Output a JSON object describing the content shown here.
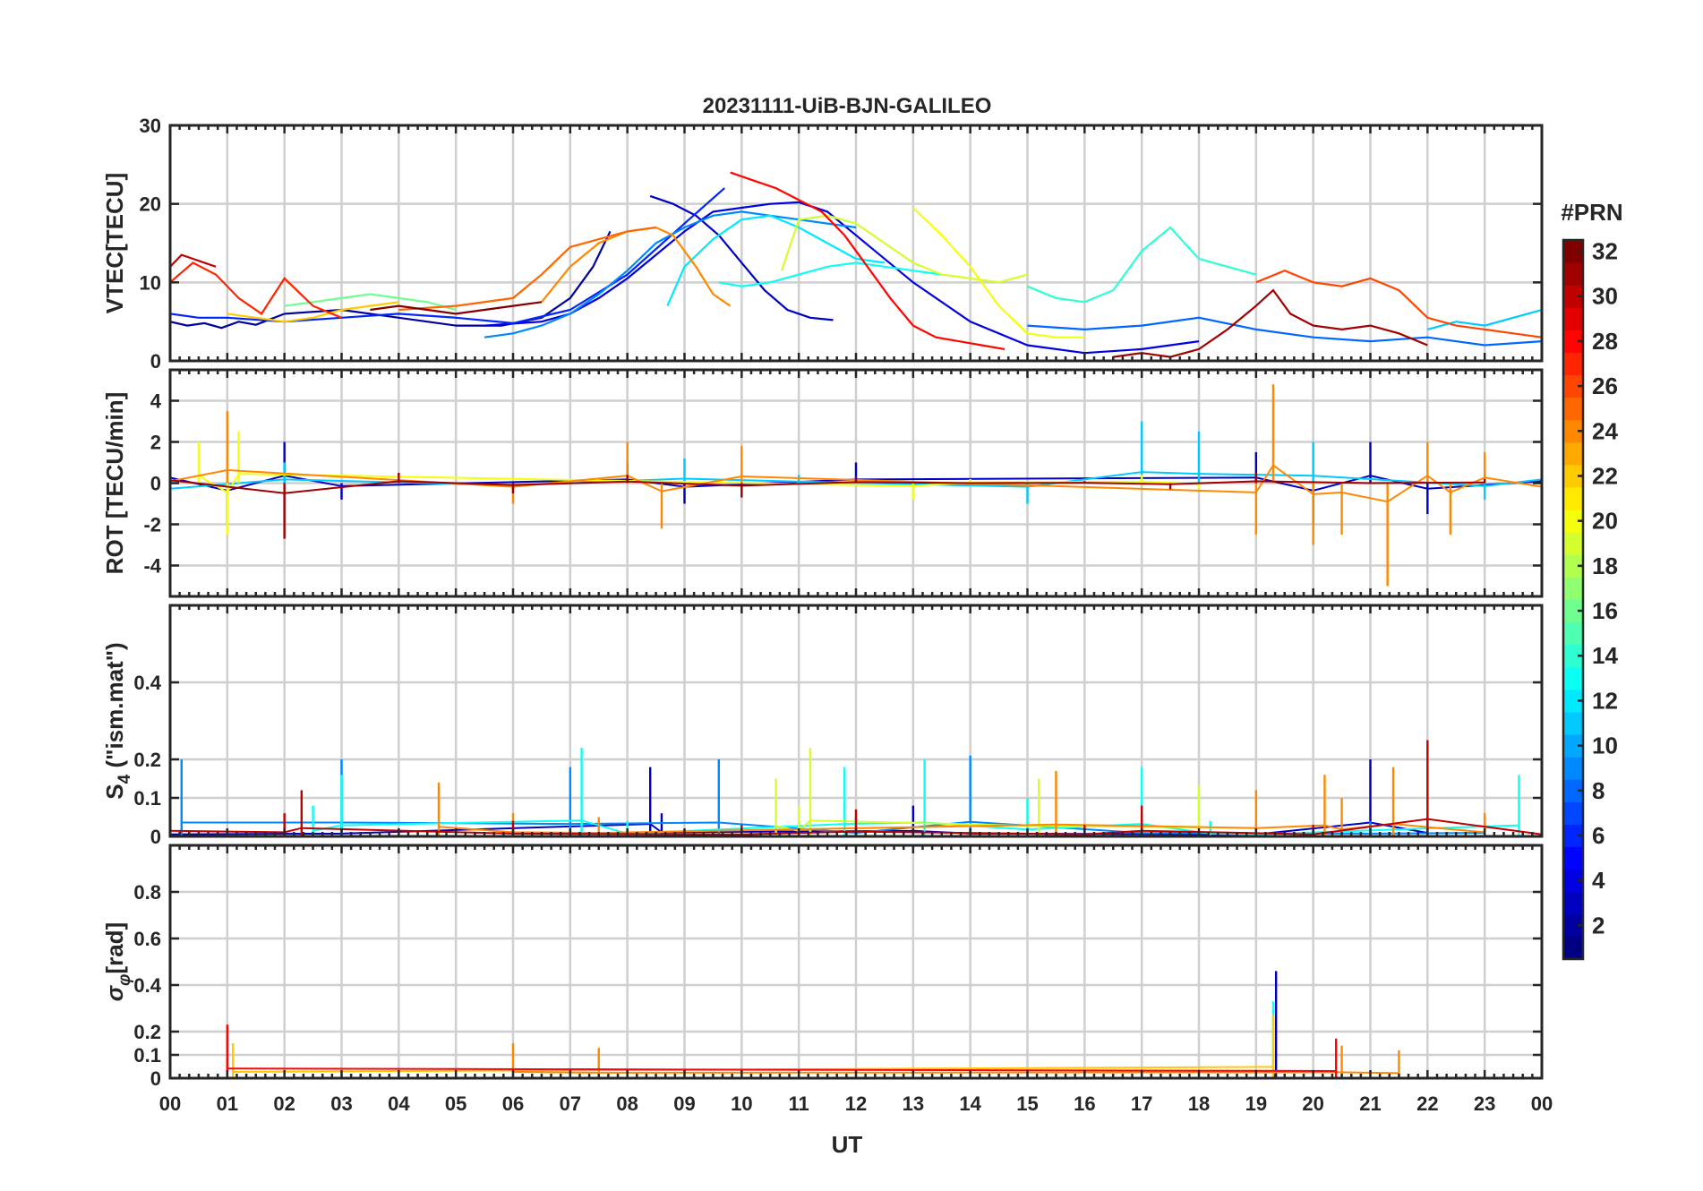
{
  "chart_data": {
    "type": "line",
    "title": "20231111-UiB-BJN-GALILEO",
    "xlabel": "UT",
    "x_ticks": [
      "00",
      "01",
      "02",
      "03",
      "04",
      "05",
      "06",
      "07",
      "08",
      "09",
      "10",
      "11",
      "12",
      "13",
      "14",
      "15",
      "16",
      "17",
      "18",
      "19",
      "20",
      "21",
      "22",
      "23",
      "00"
    ],
    "xlim_hours": [
      0,
      24
    ],
    "colorbar": {
      "label": "#PRN",
      "ticks": [
        "2",
        "4",
        "6",
        "8",
        "10",
        "12",
        "14",
        "16",
        "18",
        "20",
        "22",
        "24",
        "26",
        "28",
        "30",
        "32"
      ],
      "range": [
        1,
        32
      ],
      "colormap": "jet"
    },
    "panels": [
      {
        "id": "vtec",
        "ylabel": "VTEC[TECU]",
        "ylim": [
          0,
          30
        ],
        "y_ticks": [
          "0",
          "10",
          "20",
          "30"
        ],
        "y_tick_values": [
          0,
          10,
          20,
          30
        ],
        "series": [
          {
            "prn": 2,
            "x": [
              0.0,
              0.3,
              0.6,
              0.9,
              1.2,
              1.5,
              2.0,
              3.0,
              4.0,
              5.0,
              5.8,
              6.5,
              7.0,
              7.4,
              7.7
            ],
            "y": [
              5,
              4.5,
              4.8,
              4.2,
              5.0,
              4.6,
              6.0,
              6.5,
              5.5,
              4.5,
              4.5,
              5.5,
              8.0,
              12.0,
              16.5
            ]
          },
          {
            "prn": 3,
            "x": [
              8.4,
              8.8,
              9.2,
              9.6,
              10.0,
              10.4,
              10.8,
              11.2,
              11.6
            ],
            "y": [
              21,
              20,
              18.5,
              16,
              12.5,
              9.0,
              6.5,
              5.5,
              5.2
            ]
          },
          {
            "prn": 4,
            "x": [
              5.5,
              6.5,
              7.0,
              7.5,
              8.0,
              8.5,
              9.0,
              9.5,
              10.0,
              10.5,
              11.0,
              11.5,
              12.0,
              13.0,
              14.0,
              15.0,
              16.0,
              17.0,
              18.0
            ],
            "y": [
              4.5,
              5.0,
              6.0,
              8.0,
              10.5,
              13.5,
              16.5,
              19,
              19.5,
              20,
              20.2,
              19,
              16,
              10,
              5,
              2,
              1,
              1.5,
              2.5
            ]
          },
          {
            "prn": 6,
            "x": [
              0.0,
              0.5,
              1.0,
              2.0,
              3.0,
              4.0,
              5.0,
              6.0,
              7.0,
              8.0,
              9.0,
              9.7
            ],
            "y": [
              6,
              5.5,
              5.5,
              5.0,
              5.5,
              6.0,
              5.5,
              4.8,
              6.5,
              11.0,
              17.5,
              22.0
            ]
          },
          {
            "prn": 8,
            "x": [
              15.0,
              16.0,
              17.0,
              18.0,
              19.0,
              20.0,
              21.0,
              22.0,
              23.0,
              24.0
            ],
            "y": [
              4.5,
              4.0,
              4.5,
              5.5,
              4.0,
              3.0,
              2.5,
              3.0,
              2.0,
              2.5
            ]
          },
          {
            "prn": 9,
            "x": [
              5.5,
              6.0,
              6.5,
              7.0,
              7.5,
              8.0,
              8.5,
              9.0,
              9.5,
              10.0,
              10.5,
              11.0,
              11.5,
              12.0
            ],
            "y": [
              3.0,
              3.5,
              4.5,
              6.0,
              8.5,
              11.5,
              15.0,
              17.0,
              18.5,
              19.0,
              18.5,
              18.0,
              17.5,
              17.0
            ]
          },
          {
            "prn": 11,
            "x": [
              22.0,
              22.5,
              23.0,
              23.5,
              24.0
            ],
            "y": [
              4.0,
              5.0,
              4.5,
              5.5,
              6.5
            ]
          },
          {
            "prn": 12,
            "x": [
              8.7,
              9.0,
              9.5,
              10.0,
              10.5,
              11.0,
              11.5,
              12.0,
              12.5
            ],
            "y": [
              7.0,
              12.0,
              15.5,
              18.0,
              18.5,
              17.0,
              15.0,
              13.0,
              12.5
            ]
          },
          {
            "prn": 13,
            "x": [
              9.6,
              10.0,
              10.5,
              11.0,
              11.5,
              12.0,
              12.5,
              13.0,
              13.5
            ],
            "y": [
              10.0,
              9.5,
              10.0,
              11.0,
              12.0,
              12.5,
              12.0,
              11.5,
              11.0
            ]
          },
          {
            "prn": 14,
            "x": [
              15.0,
              15.5,
              16.0,
              16.5,
              17.0,
              17.5,
              18.0,
              18.5,
              19.0
            ],
            "y": [
              9.5,
              8.0,
              7.5,
              9.0,
              14.0,
              17.0,
              13.0,
              12.0,
              11.0
            ]
          },
          {
            "prn": 16,
            "x": [
              2.0,
              2.5,
              3.0,
              3.5,
              4.0,
              4.5,
              5.0
            ],
            "y": [
              7.0,
              7.5,
              8.0,
              8.5,
              8.0,
              7.5,
              6.5
            ]
          },
          {
            "prn": 19,
            "x": [
              10.7,
              11.0,
              11.5,
              12.0,
              12.5,
              13.0,
              13.5,
              14.0,
              14.5,
              15.0
            ],
            "y": [
              11.5,
              18.0,
              18.5,
              17.5,
              15.0,
              12.5,
              11.0,
              10.5,
              10.0,
              11.0
            ]
          },
          {
            "prn": 20,
            "x": [
              13.0,
              13.5,
              14.0,
              14.5,
              15.0,
              15.5,
              16.0
            ],
            "y": [
              19.5,
              16.0,
              12.0,
              7.0,
              3.5,
              3.0,
              3.0
            ]
          },
          {
            "prn": 22,
            "x": [
              1.0,
              1.5,
              2.0,
              2.5,
              3.0,
              3.5,
              4.0
            ],
            "y": [
              6.0,
              5.5,
              5.0,
              5.5,
              6.5,
              7.0,
              7.5
            ]
          },
          {
            "prn": 24,
            "x": [
              6.5,
              7.0,
              7.5,
              8.0,
              8.5,
              8.8,
              9.2,
              9.5,
              9.8
            ],
            "y": [
              7.5,
              12.0,
              15.0,
              16.5,
              17.0,
              16.0,
              12.0,
              8.5,
              7.0
            ]
          },
          {
            "prn": 25,
            "x": [
              4.0,
              5.0,
              6.0,
              6.5,
              7.0,
              7.5,
              8.0,
              8.5
            ],
            "y": [
              6.5,
              7.0,
              8.0,
              11.0,
              14.5,
              15.5,
              16.5,
              17.0
            ]
          },
          {
            "prn": 26,
            "x": [
              19.0,
              19.5,
              20.0,
              20.5,
              21.0,
              21.5,
              22.0,
              22.5,
              23.0,
              23.5,
              24.0
            ],
            "y": [
              10.0,
              11.5,
              10.0,
              9.5,
              10.5,
              9.0,
              5.5,
              4.5,
              4.0,
              3.5,
              3.0
            ]
          },
          {
            "prn": 27,
            "x": [
              0.0,
              0.4,
              0.8,
              1.2,
              1.6,
              2.0,
              2.5,
              3.0
            ],
            "y": [
              10.0,
              12.5,
              11.0,
              8.0,
              6.0,
              10.5,
              7.0,
              5.5
            ]
          },
          {
            "prn": 28,
            "x": [
              9.8,
              10.2,
              10.6,
              11.0,
              11.4,
              11.8,
              12.2,
              12.6,
              13.0,
              13.4,
              13.8,
              14.2,
              14.6
            ],
            "y": [
              24.0,
              23.0,
              22.0,
              20.5,
              19.0,
              16.0,
              12.0,
              8.0,
              4.5,
              3.0,
              2.5,
              2.0,
              1.5
            ]
          },
          {
            "prn": 30,
            "x": [
              0.0,
              0.2,
              0.4,
              0.6,
              0.8
            ],
            "y": [
              12.0,
              13.5,
              13.0,
              12.5,
              12.0
            ]
          },
          {
            "prn": 31,
            "x": [
              16.5,
              17.0,
              17.5,
              18.0,
              18.5,
              19.0,
              19.3,
              19.6,
              20.0,
              20.5,
              21.0,
              21.5,
              22.0
            ],
            "y": [
              0.5,
              1.0,
              0.5,
              1.5,
              4.0,
              7.0,
              9.0,
              6.0,
              4.5,
              4.0,
              4.5,
              3.5,
              2.0
            ]
          },
          {
            "prn": 32,
            "x": [
              3.5,
              4.0,
              4.5,
              5.0,
              5.5,
              6.0,
              6.5
            ],
            "y": [
              6.5,
              7.0,
              6.5,
              6.0,
              6.5,
              7.0,
              7.5
            ]
          }
        ]
      },
      {
        "id": "rot",
        "ylabel": "ROT [TECU/min]",
        "ylim": [
          -5.5,
          5.5
        ],
        "y_ticks": [
          "-4",
          "-2",
          "0",
          "2",
          "4"
        ],
        "y_tick_values": [
          -4,
          -2,
          0,
          2,
          4
        ],
        "series": [
          {
            "prn": 3,
            "x": [
              0.0,
              1.0,
              2.0,
              3.0,
              8.0,
              9.0,
              12.0,
              19.0,
              20.0,
              21.0,
              22.0,
              24.0
            ],
            "y": [
              1.5,
              -2.0,
              2.0,
              -0.8,
              1.0,
              -1.0,
              1.0,
              1.5,
              -2.0,
              2.0,
              -1.5,
              0.5
            ]
          },
          {
            "prn": 11,
            "x": [
              0.0,
              2.0,
              6.0,
              9.0,
              11.0,
              15.0,
              17.0,
              18.0,
              20.0,
              23.0,
              24.0
            ],
            "y": [
              -1.5,
              1.0,
              -0.6,
              1.2,
              0.4,
              -1.0,
              3.0,
              2.5,
              2.0,
              -0.8,
              1.0
            ]
          },
          {
            "prn": 20,
            "x": [
              0.5,
              1.0,
              1.2,
              13.0,
              14.0,
              17.0,
              18.0
            ],
            "y": [
              2.0,
              -2.5,
              2.5,
              -0.8,
              0.2,
              0.4,
              -0.3
            ]
          },
          {
            "prn": 24,
            "x": [
              0.0,
              1.0,
              6.0,
              8.0,
              8.6,
              10.0,
              19.0,
              19.3,
              20.0,
              20.5,
              21.3,
              22.0,
              22.4,
              23.0,
              24.0
            ],
            "y": [
              0.5,
              3.5,
              -1.0,
              2.0,
              -2.2,
              1.8,
              -2.5,
              4.8,
              -3.0,
              -2.5,
              -5.0,
              2.0,
              -2.5,
              1.5,
              -1.0
            ]
          },
          {
            "prn": 31,
            "x": [
              0.0,
              2.0,
              4.0,
              6.0,
              8.0,
              10.0,
              12.0,
              14.0,
              16.0,
              17.5,
              19.0,
              21.0,
              23.0
            ],
            "y": [
              0.8,
              -2.7,
              0.5,
              -0.5,
              0.4,
              -0.7,
              0.3,
              0.0,
              0.1,
              -0.3,
              0.5,
              0.0,
              0.2
            ]
          }
        ]
      },
      {
        "id": "s4",
        "ylabel": "S4 (\"ism.mat\")",
        "ylabel_main": "S",
        "ylabel_sub": "4",
        "ylabel_rest": "(\"ism.mat\")",
        "ylim": [
          0,
          0.6
        ],
        "y_ticks": [
          "0",
          "0.1",
          "0.2",
          "0.4"
        ],
        "y_tick_values": [
          0,
          0.1,
          0.2,
          0.4
        ],
        "series": [
          {
            "prn": 3,
            "x": [
              0.0,
              3.0,
              8.4,
              8.6,
              13.0,
              14.0,
              19.0,
              21.0,
              22.0
            ],
            "y": [
              0.03,
              0.04,
              0.18,
              0.06,
              0.08,
              0.04,
              0.03,
              0.2,
              0.05
            ]
          },
          {
            "prn": 9,
            "x": [
              0.2,
              3.0,
              7.0,
              9.6,
              12.0,
              14.0,
              17.0,
              21.0,
              23.0
            ],
            "y": [
              0.2,
              0.2,
              0.18,
              0.2,
              0.05,
              0.21,
              0.05,
              0.04,
              0.05
            ]
          },
          {
            "prn": 13,
            "x": [
              2.5,
              3.0,
              7.2,
              8.0,
              11.8,
              13.2,
              15.0,
              17.0,
              18.2,
              19.0,
              23.6
            ],
            "y": [
              0.08,
              0.16,
              0.23,
              0.04,
              0.18,
              0.2,
              0.1,
              0.18,
              0.04,
              0.03,
              0.16
            ]
          },
          {
            "prn": 19,
            "x": [
              10.6,
              11.0,
              11.2,
              15.2,
              18.0
            ],
            "y": [
              0.15,
              0.08,
              0.23,
              0.15,
              0.13
            ]
          },
          {
            "prn": 24,
            "x": [
              4.7,
              6.0,
              7.5,
              15.5,
              19.0,
              20.2,
              20.5,
              21.4,
              23.0
            ],
            "y": [
              0.14,
              0.06,
              0.05,
              0.17,
              0.12,
              0.16,
              0.1,
              0.18,
              0.06
            ]
          },
          {
            "prn": 30,
            "x": [
              0.0,
              2.0,
              2.3,
              6.0,
              10.0,
              12.0,
              16.0,
              17.0,
              20.0,
              22.0,
              24.0
            ],
            "y": [
              0.08,
              0.06,
              0.12,
              0.04,
              0.03,
              0.07,
              0.03,
              0.08,
              0.03,
              0.25,
              0.03
            ]
          }
        ]
      },
      {
        "id": "sigma",
        "ylabel": "σφ[rad]",
        "ylabel_main": "σ",
        "ylabel_sub": "φ",
        "ylabel_rest": "[rad]",
        "ylim": [
          0,
          1.0
        ],
        "y_ticks": [
          "0",
          "0.1",
          "0.2",
          "0.4",
          "0.6",
          "0.8"
        ],
        "y_tick_values": [
          0,
          0.1,
          0.2,
          0.4,
          0.6,
          0.8
        ],
        "series": [
          {
            "prn": 3,
            "x": [
              19.35
            ],
            "y": [
              0.46
            ]
          },
          {
            "prn": 13,
            "x": [
              19.3
            ],
            "y": [
              0.33
            ]
          },
          {
            "prn": 22,
            "x": [
              1.1,
              19.3
            ],
            "y": [
              0.15,
              0.27
            ]
          },
          {
            "prn": 24,
            "x": [
              6.0,
              7.5,
              20.5,
              21.5
            ],
            "y": [
              0.15,
              0.13,
              0.14,
              0.12
            ]
          },
          {
            "prn": 28,
            "x": [
              1.0,
              20.4
            ],
            "y": [
              0.23,
              0.17
            ]
          }
        ]
      }
    ]
  }
}
